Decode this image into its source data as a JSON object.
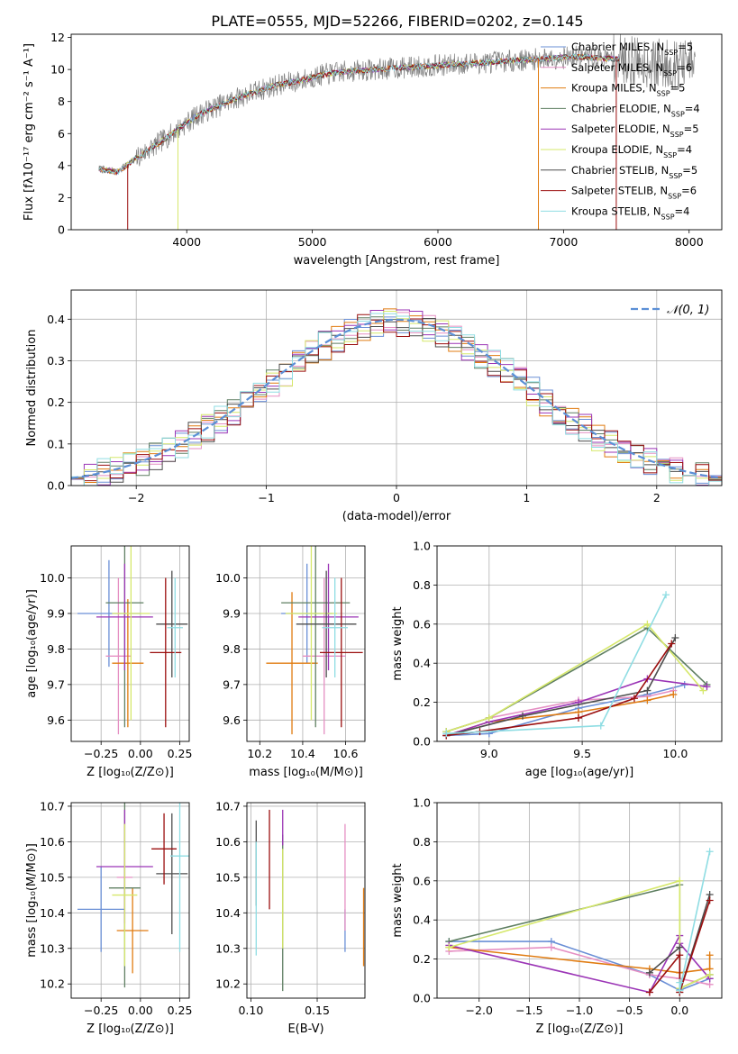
{
  "figure": {
    "title": "PLATE=0555, MJD=52266, FIBERID=0202, z=0.145"
  },
  "colors": {
    "cmiles": "#6a8fd6",
    "smiles": "#e58fc3",
    "kmiles": "#e07b10",
    "celodie": "#5f7f62",
    "selodie": "#9b35b6",
    "kelodie": "#d6e86b",
    "cstelib": "#4d4d4d",
    "sstelib": "#9b0f0f",
    "kstelib": "#8fdde3",
    "data": "#808080",
    "gauss": "#5b8fd6"
  },
  "chart_data": [
    {
      "id": "spectrum",
      "type": "line",
      "title": "PLATE=0555, MJD=52266, FIBERID=0202, z=0.145",
      "xlabel": "wavelength [Angstrom, rest frame]",
      "ylabel": "Flux [fλ10⁻¹⁷ erg cm⁻² s⁻¹ A⁻¹]",
      "xlim": [
        3080,
        8260
      ],
      "ylim": [
        0,
        12.2
      ],
      "xticks": [
        4000,
        5000,
        6000,
        7000,
        8000
      ],
      "yticks": [
        0,
        2,
        4,
        6,
        8,
        10,
        12
      ],
      "grid": false,
      "legend": "upper right",
      "continuum": [
        [
          3300,
          3.8
        ],
        [
          3450,
          3.6
        ],
        [
          3550,
          4.2
        ],
        [
          3700,
          5.0
        ],
        [
          3850,
          5.8
        ],
        [
          3950,
          6.4
        ],
        [
          4100,
          7.2
        ],
        [
          4300,
          7.9
        ],
        [
          4500,
          8.5
        ],
        [
          4700,
          9.0
        ],
        [
          4900,
          9.3
        ],
        [
          5100,
          9.7
        ],
        [
          5300,
          9.9
        ],
        [
          5500,
          10.0
        ],
        [
          5700,
          10.1
        ],
        [
          5900,
          10.2
        ],
        [
          6100,
          10.3
        ],
        [
          6300,
          10.4
        ],
        [
          6500,
          10.5
        ],
        [
          6700,
          10.6
        ],
        [
          6900,
          10.7
        ],
        [
          7100,
          10.8
        ],
        [
          7300,
          10.7
        ],
        [
          7500,
          10.6
        ],
        [
          7700,
          10.4
        ],
        [
          7900,
          10.3
        ],
        [
          8050,
          10.3
        ]
      ],
      "data_range": [
        3300,
        8050
      ],
      "model_range": [
        3300,
        7450
      ],
      "model_edges": [
        {
          "x": 3530,
          "series": "sstelib"
        },
        {
          "x": 3930,
          "series": "kelodie"
        },
        {
          "x": 6800,
          "series": "kmiles"
        },
        {
          "x": 7420,
          "series": "sstelib"
        }
      ],
      "series": [
        {
          "key": "cmiles",
          "name": "Chabrier MILES, N$_{SSP}$=5",
          "label": "Chabrier MILES, N",
          "sub": "SSP",
          "suffix": "=5"
        },
        {
          "key": "smiles",
          "name": "Salpeter MILES, N$_{SSP}$=6",
          "label": "Salpeter MILES, N",
          "sub": "SSP",
          "suffix": "=6"
        },
        {
          "key": "kmiles",
          "name": "Kroupa MILES, N$_{SSP}$=5",
          "label": "Kroupa MILES, N",
          "sub": "SSP",
          "suffix": "=5"
        },
        {
          "key": "celodie",
          "name": "Chabrier ELODIE, N$_{SSP}$=4",
          "label": "Chabrier ELODIE, N",
          "sub": "SSP",
          "suffix": "=4"
        },
        {
          "key": "selodie",
          "name": "Salpeter ELODIE, N$_{SSP}$=5",
          "label": "Salpeter ELODIE, N",
          "sub": "SSP",
          "suffix": "=5"
        },
        {
          "key": "kelodie",
          "name": "Kroupa ELODIE, N$_{SSP}$=4",
          "label": "Kroupa ELODIE, N",
          "sub": "SSP",
          "suffix": "=4"
        },
        {
          "key": "cstelib",
          "name": "Chabrier STELIB, N$_{SSP}$=5",
          "label": "Chabrier STELIB, N",
          "sub": "SSP",
          "suffix": "=5"
        },
        {
          "key": "sstelib",
          "name": "Salpeter STELIB, N$_{SSP}$=6",
          "label": "Salpeter STELIB, N",
          "sub": "SSP",
          "suffix": "=6"
        },
        {
          "key": "kstelib",
          "name": "Kroupa STELIB, N$_{SSP}$=4",
          "label": "Kroupa STELIB, N",
          "sub": "SSP",
          "suffix": "=4"
        }
      ]
    },
    {
      "id": "residuals",
      "type": "histogram",
      "xlabel": "(data-model)/error",
      "ylabel": "Normed distribution",
      "xlim": [
        -2.5,
        2.5
      ],
      "ylim": [
        0,
        0.47
      ],
      "xticks": [
        -2,
        -1,
        0,
        1,
        2
      ],
      "xticklabels": [
        "−2",
        "−1",
        "0",
        "1",
        "2"
      ],
      "yticks": [
        0.0,
        0.1,
        0.2,
        0.3,
        0.4
      ],
      "yticklabels": [
        "0.0",
        "0.1",
        "0.2",
        "0.3",
        "0.4"
      ],
      "grid": true,
      "legend": "upper right",
      "legend_label": "𝒩(0, 1)",
      "bin_width": 0.1,
      "reference": {
        "type": "normal",
        "mean": 0,
        "sigma": 1
      }
    },
    {
      "id": "age_Z",
      "type": "errorbar",
      "xlabel": "Z [log₁₀(Z/Z⊙)]",
      "ylabel": "age  [log₁₀(age/yr)]",
      "xlim": [
        -0.44,
        0.31
      ],
      "ylim": [
        9.54,
        10.09
      ],
      "xticks": [
        -0.25,
        0.0,
        0.25
      ],
      "xticklabels": [
        "−0.25",
        "0.00",
        "0.25"
      ],
      "yticks": [
        9.6,
        9.7,
        9.8,
        9.9,
        10.0
      ],
      "yticklabels": [
        "9.6",
        "9.7",
        "9.8",
        "9.9",
        "10.0"
      ],
      "grid": true,
      "points": [
        {
          "s": "cmiles",
          "x": -0.2,
          "xe": 0.2,
          "y": 9.9,
          "ye": 0.15
        },
        {
          "s": "smiles",
          "x": -0.14,
          "xe": 0.08,
          "y": 9.78,
          "ye": 0.22
        },
        {
          "s": "kmiles",
          "x": -0.08,
          "xe": 0.1,
          "y": 9.76,
          "ye": 0.18
        },
        {
          "s": "celodie",
          "x": -0.1,
          "xe": 0.12,
          "y": 9.93,
          "ye": 0.35
        },
        {
          "s": "selodie",
          "x": -0.1,
          "xe": 0.18,
          "y": 9.89,
          "ye": 0.15
        },
        {
          "s": "kelodie",
          "x": -0.06,
          "xe": 0.12,
          "y": 9.9,
          "ye": 0.3
        },
        {
          "s": "cstelib",
          "x": 0.2,
          "xe": 0.1,
          "y": 9.87,
          "ye": 0.15
        },
        {
          "s": "sstelib",
          "x": 0.16,
          "xe": 0.1,
          "y": 9.79,
          "ye": 0.21
        },
        {
          "s": "kstelib",
          "x": 0.22,
          "xe": 0.05,
          "y": 9.86,
          "ye": 0.14
        }
      ]
    },
    {
      "id": "age_mass",
      "type": "errorbar",
      "xlabel": "mass [log₁₀(M/M⊙)]",
      "ylabel": "",
      "xlim": [
        10.14,
        10.69
      ],
      "ylim": [
        9.54,
        10.09
      ],
      "xticks": [
        10.2,
        10.4,
        10.6
      ],
      "xticklabels": [
        "10.2",
        "10.4",
        "10.6"
      ],
      "yticks": [
        9.6,
        9.7,
        9.8,
        9.9,
        10.0
      ],
      "yticklabels": [
        "9.6",
        "9.7",
        "9.8",
        "9.9",
        "10.0"
      ],
      "grid": true,
      "points": [
        {
          "s": "cmiles",
          "x": 10.42,
          "xe": 0.12,
          "y": 9.9,
          "ye": 0.14
        },
        {
          "s": "smiles",
          "x": 10.5,
          "xe": 0.1,
          "y": 9.78,
          "ye": 0.22
        },
        {
          "s": "kmiles",
          "x": 10.35,
          "xe": 0.12,
          "y": 9.76,
          "ye": 0.2
        },
        {
          "s": "celodie",
          "x": 10.46,
          "xe": 0.16,
          "y": 9.93,
          "ye": 0.35
        },
        {
          "s": "selodie",
          "x": 10.52,
          "xe": 0.14,
          "y": 9.89,
          "ye": 0.15
        },
        {
          "s": "kelodie",
          "x": 10.44,
          "xe": 0.12,
          "y": 9.9,
          "ye": 0.3
        },
        {
          "s": "cstelib",
          "x": 10.51,
          "xe": 0.14,
          "y": 9.87,
          "ye": 0.15
        },
        {
          "s": "sstelib",
          "x": 10.58,
          "xe": 0.1,
          "y": 9.79,
          "ye": 0.21
        },
        {
          "s": "kstelib",
          "x": 10.55,
          "xe": 0.06,
          "y": 9.86,
          "ye": 0.14
        }
      ]
    },
    {
      "id": "weight_age",
      "type": "line",
      "xlabel": "age  [log₁₀(age/yr)]",
      "ylabel": "mass weight",
      "xlim": [
        8.72,
        10.25
      ],
      "ylim": [
        0,
        1
      ],
      "xticks": [
        9.0,
        9.5,
        10.0
      ],
      "xticklabels": [
        "9.0",
        "9.5",
        "10.0"
      ],
      "yticks": [
        0.0,
        0.2,
        0.4,
        0.6,
        0.8,
        1.0
      ],
      "yticklabels": [
        "0.0",
        "0.2",
        "0.4",
        "0.6",
        "0.8",
        "1.0"
      ],
      "grid": true,
      "series": [
        {
          "s": "cmiles",
          "x": [
            8.77,
            9.0,
            9.48,
            9.85,
            10.05
          ],
          "y": [
            0.03,
            0.04,
            0.17,
            0.24,
            0.29
          ]
        },
        {
          "s": "smiles",
          "x": [
            8.77,
            9.0,
            9.48,
            9.85,
            9.99
          ],
          "y": [
            0.05,
            0.12,
            0.21,
            0.23,
            0.26
          ]
        },
        {
          "s": "kmiles",
          "x": [
            8.77,
            9.0,
            9.48,
            9.85,
            9.99
          ],
          "y": [
            0.03,
            0.1,
            0.15,
            0.21,
            0.24
          ]
        },
        {
          "s": "celodie",
          "x": [
            8.77,
            9.0,
            9.85,
            10.17
          ],
          "y": [
            0.05,
            0.12,
            0.58,
            0.29
          ]
        },
        {
          "s": "selodie",
          "x": [
            8.77,
            9.0,
            9.48,
            9.85,
            10.17
          ],
          "y": [
            0.03,
            0.1,
            0.2,
            0.32,
            0.28
          ]
        },
        {
          "s": "kelodie",
          "x": [
            8.77,
            9.0,
            9.85,
            10.15
          ],
          "y": [
            0.05,
            0.12,
            0.6,
            0.26
          ]
        },
        {
          "s": "cstelib",
          "x": [
            8.77,
            9.18,
            9.85,
            10.0
          ],
          "y": [
            0.03,
            0.13,
            0.26,
            0.53
          ]
        },
        {
          "s": "sstelib",
          "x": [
            8.77,
            8.95,
            9.48,
            9.78,
            9.98
          ],
          "y": [
            0.03,
            0.05,
            0.12,
            0.22,
            0.5
          ]
        },
        {
          "s": "kstelib",
          "x": [
            8.77,
            9.6,
            9.95
          ],
          "y": [
            0.04,
            0.08,
            0.75
          ]
        }
      ]
    },
    {
      "id": "mass_Z",
      "type": "errorbar",
      "xlabel": "Z [log₁₀(Z/Z⊙)]",
      "ylabel": "mass [log₁₀(M/M⊙)]",
      "xlim": [
        -0.44,
        0.31
      ],
      "ylim": [
        10.16,
        10.71
      ],
      "xticks": [
        -0.25,
        0.0,
        0.25
      ],
      "xticklabels": [
        "−0.25",
        "0.00",
        "0.25"
      ],
      "yticks": [
        10.2,
        10.3,
        10.4,
        10.5,
        10.6,
        10.7
      ],
      "yticklabels": [
        "10.2",
        "10.3",
        "10.4",
        "10.5",
        "10.6",
        "10.7"
      ],
      "grid": true,
      "points": [
        {
          "s": "cmiles",
          "x": -0.25,
          "xe": 0.15,
          "y": 10.41,
          "ye": 0.12
        },
        {
          "s": "smiles",
          "x": -0.1,
          "xe": 0.05,
          "y": 10.5,
          "ye": 0.15
        },
        {
          "s": "kmiles",
          "x": -0.05,
          "xe": 0.1,
          "y": 10.35,
          "ye": 0.12
        },
        {
          "s": "celodie",
          "x": -0.1,
          "xe": 0.1,
          "y": 10.47,
          "ye": 0.28
        },
        {
          "s": "selodie",
          "x": -0.1,
          "xe": 0.18,
          "y": 10.53,
          "ye": 0.16
        },
        {
          "s": "kelodie",
          "x": -0.1,
          "xe": 0.08,
          "y": 10.45,
          "ye": 0.2
        },
        {
          "s": "cstelib",
          "x": 0.2,
          "xe": 0.1,
          "y": 10.51,
          "ye": 0.17
        },
        {
          "s": "sstelib",
          "x": 0.15,
          "xe": 0.08,
          "y": 10.58,
          "ye": 0.1
        },
        {
          "s": "kstelib",
          "x": 0.25,
          "xe": 0.06,
          "y": 10.56,
          "ye": 0.27
        }
      ]
    },
    {
      "id": "mass_ebv",
      "type": "errorbar",
      "xlabel": "E(B-V)",
      "ylabel": "",
      "xlim": [
        0.097,
        0.186
      ],
      "ylim": [
        10.16,
        10.71
      ],
      "xticks": [
        0.1,
        0.15
      ],
      "xticklabels": [
        "0.10",
        "0.15"
      ],
      "yticks": [
        10.2,
        10.3,
        10.4,
        10.5,
        10.6,
        10.7
      ],
      "yticklabels": [
        "10.2",
        "10.3",
        "10.4",
        "10.5",
        "10.6",
        "10.7"
      ],
      "grid": true,
      "points": [
        {
          "s": "cmiles",
          "x": 0.171,
          "xe": 0,
          "y": 10.35,
          "ye": 0.06
        },
        {
          "s": "smiles",
          "x": 0.171,
          "xe": 0,
          "y": 10.5,
          "ye": 0.15
        },
        {
          "s": "kmiles",
          "x": 0.185,
          "xe": 0,
          "y": 10.36,
          "ye": 0.11
        },
        {
          "s": "celodie",
          "x": 0.124,
          "xe": 0,
          "y": 10.4,
          "ye": 0.22
        },
        {
          "s": "selodie",
          "x": 0.124,
          "xe": 0,
          "y": 10.64,
          "ye": 0.05
        },
        {
          "s": "kelodie",
          "x": 0.124,
          "xe": 0,
          "y": 10.44,
          "ye": 0.14
        },
        {
          "s": "cstelib",
          "x": 0.104,
          "xe": 0,
          "y": 10.54,
          "ye": 0.12
        },
        {
          "s": "sstelib",
          "x": 0.114,
          "xe": 0,
          "y": 10.55,
          "ye": 0.14
        },
        {
          "s": "kstelib",
          "x": 0.104,
          "xe": 0,
          "y": 10.44,
          "ye": 0.16
        }
      ]
    },
    {
      "id": "weight_Z",
      "type": "line",
      "xlabel": "Z [log₁₀(Z/Z⊙)]",
      "ylabel": "mass weight",
      "xlim": [
        -2.42,
        0.42
      ],
      "ylim": [
        0,
        1
      ],
      "xticks": [
        -2.0,
        -1.5,
        -1.0,
        -0.5,
        0.0
      ],
      "xticklabels": [
        "−2.0",
        "−1.5",
        "−1.0",
        "−0.5",
        "0.0"
      ],
      "yticks": [
        0.0,
        0.2,
        0.4,
        0.6,
        0.8,
        1.0
      ],
      "yticklabels": [
        "0.0",
        "0.2",
        "0.4",
        "0.6",
        "0.8",
        "1.0"
      ],
      "grid": true,
      "series": [
        {
          "s": "cmiles",
          "x": [
            -2.3,
            -1.28,
            -0.3,
            0.0,
            0.3
          ],
          "y": [
            0.29,
            0.29,
            0.12,
            0.04,
            0.1
          ]
        },
        {
          "s": "smiles",
          "x": [
            -2.3,
            -1.28,
            -0.3,
            0.0,
            0.3
          ],
          "y": [
            0.24,
            0.26,
            0.12,
            0.1,
            0.07
          ]
        },
        {
          "s": "kmiles",
          "x": [
            -2.3,
            -0.3,
            0.0,
            0.3,
            0.3
          ],
          "y": [
            0.26,
            0.15,
            0.13,
            0.15,
            0.22
          ]
        },
        {
          "s": "celodie",
          "x": [
            -2.3,
            0.0,
            0.0,
            0.3
          ],
          "y": [
            0.29,
            0.58,
            0.05,
            0.12
          ]
        },
        {
          "s": "selodie",
          "x": [
            -2.3,
            -0.3,
            0.0,
            0.0,
            0.3
          ],
          "y": [
            0.27,
            0.03,
            0.32,
            0.28,
            0.1
          ]
        },
        {
          "s": "kelodie",
          "x": [
            -2.3,
            0.0,
            0.0,
            0.3
          ],
          "y": [
            0.26,
            0.6,
            0.05,
            0.12
          ]
        },
        {
          "s": "cstelib",
          "x": [
            -0.3,
            0.0,
            0.0,
            0.3
          ],
          "y": [
            0.13,
            0.26,
            0.03,
            0.53
          ]
        },
        {
          "s": "sstelib",
          "x": [
            -0.3,
            0.0,
            0.0,
            0.3
          ],
          "y": [
            0.03,
            0.22,
            0.03,
            0.5
          ]
        },
        {
          "s": "kstelib",
          "x": [
            0.0,
            0.0,
            0.3
          ],
          "y": [
            0.08,
            0.04,
            0.75
          ]
        }
      ]
    }
  ]
}
